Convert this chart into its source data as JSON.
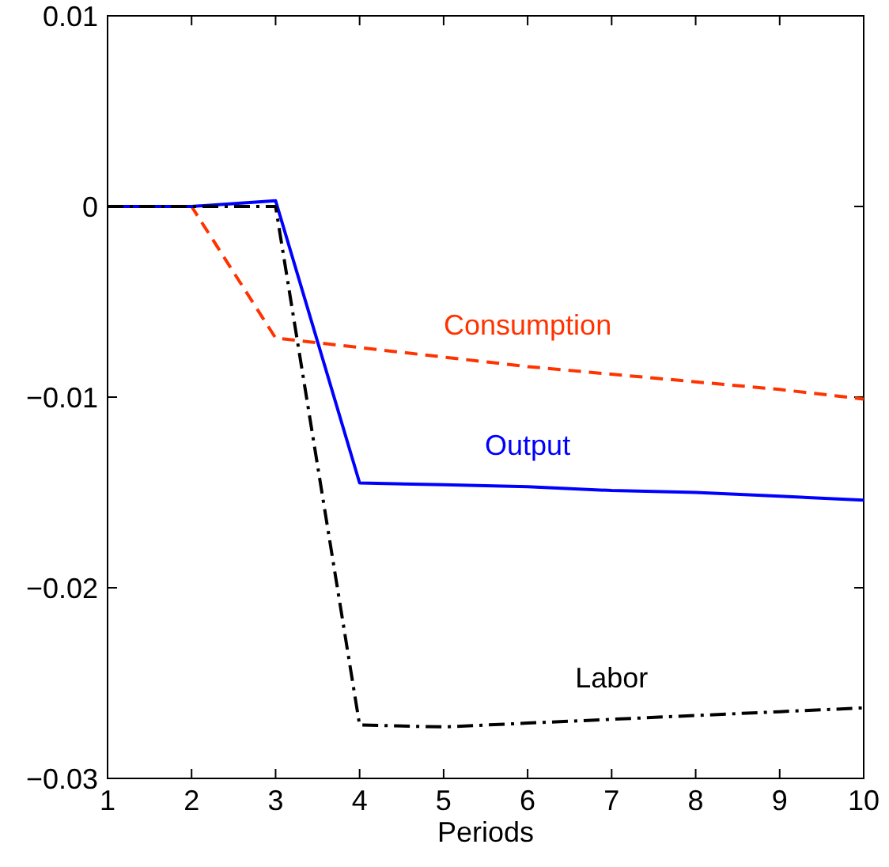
{
  "chart_data": {
    "type": "line",
    "xlabel": "Periods",
    "x": [
      1,
      2,
      3,
      4,
      5,
      6,
      7,
      8,
      9,
      10
    ],
    "xlim": [
      1,
      10
    ],
    "xticks": [
      1,
      2,
      3,
      4,
      5,
      6,
      7,
      8,
      9,
      10
    ],
    "ylim": [
      -0.03,
      0.01
    ],
    "yticks": [
      {
        "value": -0.03,
        "label": "−0.03"
      },
      {
        "value": -0.02,
        "label": "−0.02"
      },
      {
        "value": -0.01,
        "label": "−0.01"
      },
      0,
      0.01
    ],
    "marker": "none",
    "series": [
      {
        "name": "Consumption",
        "color": "#ff3300",
        "line_style": "dashed",
        "values": [
          0,
          0,
          -0.0069,
          -0.0074,
          -0.0079,
          -0.0084,
          -0.0088,
          -0.0092,
          -0.0096,
          -0.0101
        ]
      },
      {
        "name": "Output",
        "color": "#0000ff",
        "line_style": "solid",
        "values": [
          0,
          0,
          0.0003,
          -0.0145,
          -0.0146,
          -0.0147,
          -0.0149,
          -0.015,
          -0.0152,
          -0.0154
        ]
      },
      {
        "name": "Labor",
        "color": "#000000",
        "line_style": "dashdot",
        "values": [
          0,
          0,
          0,
          -0.0272,
          -0.0273,
          -0.0271,
          -0.0269,
          -0.0267,
          -0.0265,
          -0.0263
        ]
      }
    ]
  }
}
